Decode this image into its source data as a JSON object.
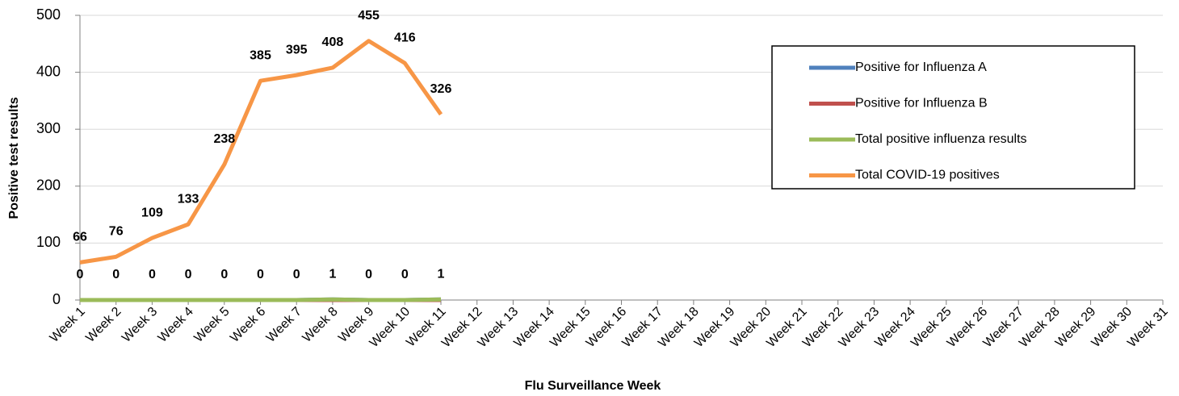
{
  "chart_data": {
    "type": "line",
    "x_label": "Flu  Surveillance Week",
    "y_label": "Positive test results",
    "categories": [
      "Week 1",
      "Week 2",
      "Week 3",
      "Week 4",
      "Week 5",
      "Week 6",
      "Week 7",
      "Week 8",
      "Week 9",
      "Week 10",
      "Week 11",
      "Week 12",
      "Week 13",
      "Week 14",
      "Week 15",
      "Week 16",
      "Week 17",
      "Week 18",
      "Week 19",
      "Week 20",
      "Week 21",
      "Week 22",
      "Week 23",
      "Week 24",
      "Week 25",
      "Week 26",
      "Week 27",
      "Week 28",
      "Week 29",
      "Week 30",
      "Week 31"
    ],
    "series": [
      {
        "name": "Positive for Influenza A",
        "color": "#4f81bd",
        "data_labels": false,
        "values": [
          0,
          0,
          0,
          0,
          0,
          0,
          0,
          1,
          0,
          0,
          1,
          null,
          null,
          null,
          null,
          null,
          null,
          null,
          null,
          null,
          null,
          null,
          null,
          null,
          null,
          null,
          null,
          null,
          null,
          null,
          null
        ]
      },
      {
        "name": "Positive for Influenza B",
        "color": "#c0504d",
        "data_labels": false,
        "values": [
          0,
          0,
          0,
          0,
          0,
          0,
          0,
          0,
          0,
          0,
          0,
          null,
          null,
          null,
          null,
          null,
          null,
          null,
          null,
          null,
          null,
          null,
          null,
          null,
          null,
          null,
          null,
          null,
          null,
          null,
          null
        ]
      },
      {
        "name": "Total positive influenza results",
        "color": "#9bbb59",
        "data_labels": true,
        "values": [
          0,
          0,
          0,
          0,
          0,
          0,
          0,
          1,
          0,
          0,
          1,
          null,
          null,
          null,
          null,
          null,
          null,
          null,
          null,
          null,
          null,
          null,
          null,
          null,
          null,
          null,
          null,
          null,
          null,
          null,
          null
        ]
      },
      {
        "name": "Total COVID-19 positives",
        "color": "#f79646",
        "data_labels": true,
        "values": [
          66,
          76,
          109,
          133,
          238,
          385,
          395,
          408,
          455,
          416,
          326,
          null,
          null,
          null,
          null,
          null,
          null,
          null,
          null,
          null,
          null,
          null,
          null,
          null,
          null,
          null,
          null,
          null,
          null,
          null,
          null
        ]
      }
    ],
    "ylim": [
      0,
      500
    ],
    "yticks": [
      0,
      100,
      200,
      300,
      400,
      500
    ],
    "grid": true,
    "legend": "upper right"
  }
}
